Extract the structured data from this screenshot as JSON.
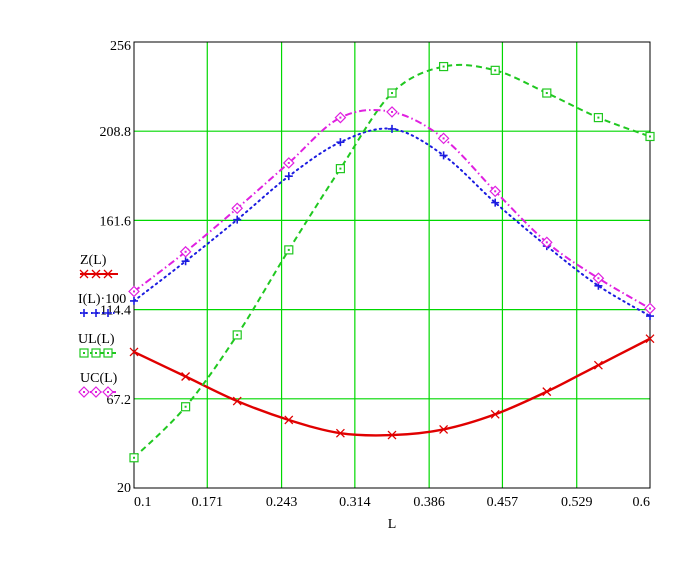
{
  "chart_data": {
    "type": "line",
    "title": "",
    "xlabel": "L",
    "ylabel": "",
    "xlim": [
      0.1,
      0.6
    ],
    "ylim": [
      20,
      256
    ],
    "x_ticks": [
      "0.1",
      "0.171",
      "0.243",
      "0.314",
      "0.386",
      "0.457",
      "0.529",
      "0.6"
    ],
    "y_ticks": [
      "20",
      "67.2",
      "114.4",
      "161.6",
      "208.8",
      "256"
    ],
    "x_tick_values": [
      0.1,
      0.171,
      0.243,
      0.314,
      0.386,
      0.457,
      0.529,
      0.6
    ],
    "y_tick_values": [
      20,
      67.2,
      114.4,
      161.6,
      208.8,
      256
    ],
    "grid": true,
    "grid_color": "#00d800",
    "legend": "left",
    "series": [
      {
        "name": "Z(L)",
        "color": "#e00000",
        "line": "solid",
        "marker": "x",
        "x": [
          0.1,
          0.15,
          0.2,
          0.25,
          0.3,
          0.35,
          0.4,
          0.45,
          0.5,
          0.55,
          0.6
        ],
        "y": [
          92,
          79,
          66,
          56,
          49,
          48,
          51,
          59,
          71,
          85,
          99
        ]
      },
      {
        "name": "I(L)·100",
        "color": "#1c1ce0",
        "line": "dotted",
        "marker": "+",
        "x": [
          0.1,
          0.15,
          0.2,
          0.25,
          0.3,
          0.35,
          0.4,
          0.45,
          0.5,
          0.55,
          0.6
        ],
        "y": [
          119,
          140,
          162,
          185,
          203,
          210,
          196,
          171,
          148,
          127,
          111
        ]
      },
      {
        "name": "UL(L)",
        "color": "#20c820",
        "line": "dashed",
        "marker": "square",
        "x": [
          0.1,
          0.15,
          0.2,
          0.25,
          0.3,
          0.35,
          0.4,
          0.45,
          0.5,
          0.55,
          0.6
        ],
        "y": [
          36,
          63,
          101,
          146,
          189,
          229,
          243,
          241,
          229,
          216,
          206
        ]
      },
      {
        "name": "UC(L)",
        "color": "#e020e0",
        "line": "dashdot",
        "marker": "diamond",
        "x": [
          0.1,
          0.15,
          0.2,
          0.25,
          0.3,
          0.35,
          0.4,
          0.45,
          0.5,
          0.55,
          0.6
        ],
        "y": [
          124,
          145,
          168,
          192,
          216,
          219,
          205,
          177,
          150,
          131,
          115
        ]
      }
    ]
  }
}
